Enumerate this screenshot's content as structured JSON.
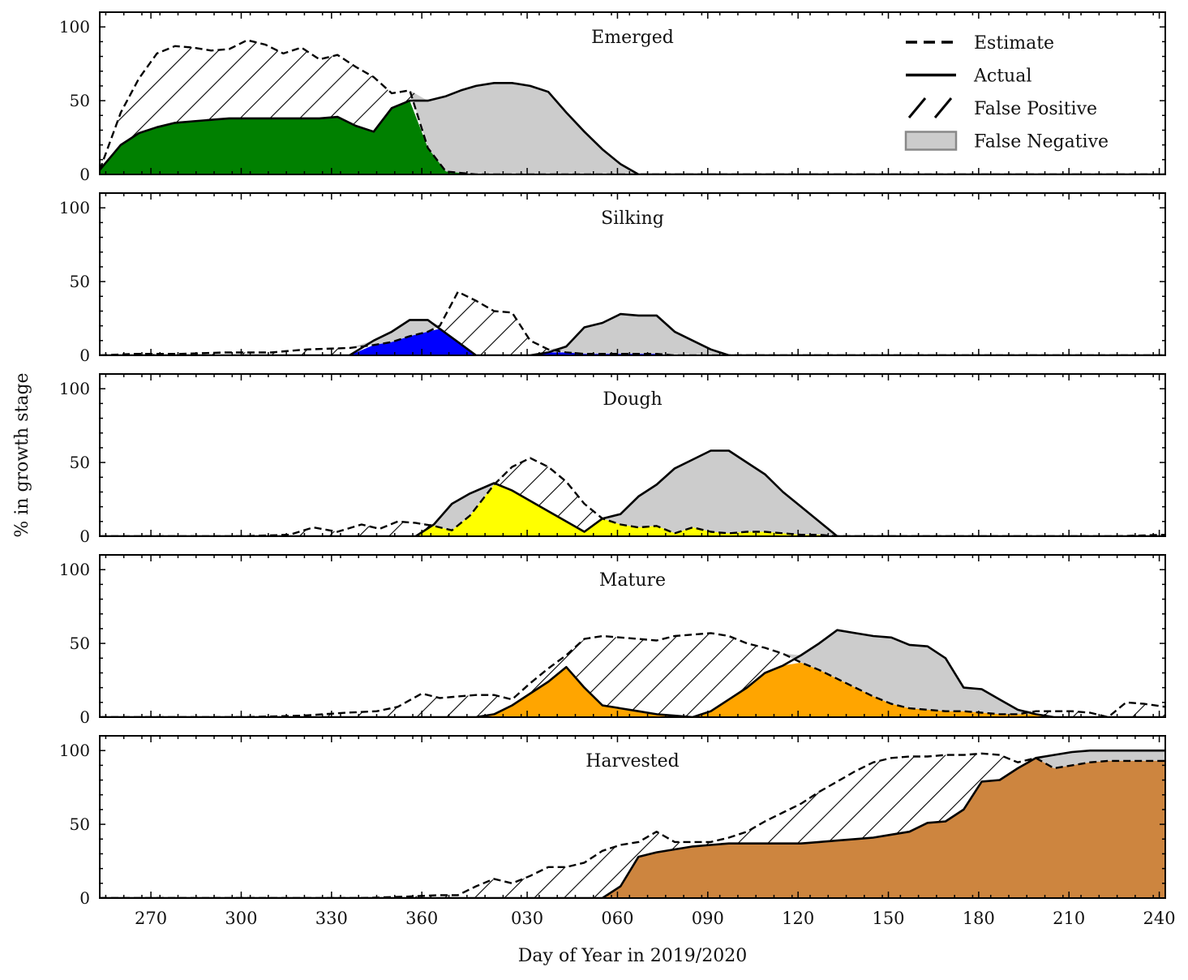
{
  "chart_data": {
    "type": "area",
    "ylabel": "% in growth stage",
    "xlabel": "Day of Year in 2019/2020",
    "x_axis": {
      "ticks": [
        {
          "x": 270,
          "label": "270"
        },
        {
          "x": 300,
          "label": "300"
        },
        {
          "x": 330,
          "label": "330"
        },
        {
          "x": 360,
          "label": "360"
        },
        {
          "x": 395,
          "label": "030"
        },
        {
          "x": 425,
          "label": "060"
        },
        {
          "x": 455,
          "label": "090"
        },
        {
          "x": 485,
          "label": "120"
        },
        {
          "x": 515,
          "label": "150"
        },
        {
          "x": 545,
          "label": "180"
        },
        {
          "x": 575,
          "label": "210"
        },
        {
          "x": 605,
          "label": "240"
        }
      ],
      "xlim": [
        253,
        607
      ],
      "note": "x is day count continuing past 365 into 2020 (365 + day-of-2020)"
    },
    "y_axis": {
      "ylim": [
        0,
        110
      ],
      "ticks": [
        0,
        50,
        100
      ]
    },
    "legend": {
      "position": "top-right",
      "entries": [
        {
          "label": "Estimate",
          "style": "dashed-line"
        },
        {
          "label": "Actual",
          "style": "solid-line"
        },
        {
          "label": "False Positive",
          "style": "hatch"
        },
        {
          "label": "False Negative",
          "style": "gray-fill"
        }
      ]
    },
    "colors": {
      "false_negative": "#cccccc",
      "line": "#000000"
    },
    "panels": [
      {
        "title": "Emerged",
        "color": "#008000",
        "x": [
          253,
          260,
          266,
          272,
          278,
          284,
          290,
          296,
          302,
          308,
          314,
          320,
          326,
          332,
          338,
          344,
          350,
          356,
          362,
          368,
          373,
          378,
          384,
          390,
          396,
          402,
          408,
          414,
          420,
          426,
          432,
          438,
          444,
          450,
          456,
          470,
          500,
          530,
          560,
          590,
          607
        ],
        "estimate": [
          3,
          42,
          65,
          82,
          87,
          86,
          84,
          85,
          91,
          88,
          82,
          86,
          78,
          81,
          73,
          66,
          55,
          57,
          18,
          2,
          1,
          0,
          0,
          0,
          0,
          0,
          0,
          0,
          0,
          0,
          0,
          0,
          0,
          0,
          0,
          0,
          0,
          0,
          0,
          0,
          0
        ],
        "actual": [
          3,
          20,
          28,
          32,
          35,
          36,
          37,
          38,
          38,
          38,
          38,
          38,
          38,
          39,
          33,
          29,
          45,
          50,
          50,
          53,
          57,
          60,
          62,
          62,
          60,
          56,
          42,
          29,
          17,
          7,
          0,
          0,
          0,
          0,
          0,
          0,
          0,
          0,
          0,
          0,
          0
        ]
      },
      {
        "title": "Silking",
        "color": "#0000ff",
        "x": [
          253,
          265,
          280,
          295,
          310,
          322,
          336,
          344,
          350,
          356,
          362,
          366,
          372,
          378,
          384,
          390,
          396,
          402,
          408,
          414,
          420,
          426,
          432,
          438,
          444,
          450,
          456,
          462,
          470,
          490,
          520,
          550,
          580,
          607
        ],
        "estimate": [
          0,
          1,
          1,
          2,
          2,
          4,
          5,
          7,
          9,
          13,
          16,
          20,
          43,
          37,
          30,
          29,
          10,
          4,
          2,
          1,
          1,
          1,
          1,
          1,
          0,
          0,
          0,
          0,
          0,
          0,
          0,
          0,
          0,
          0
        ],
        "actual": [
          0,
          0,
          0,
          0,
          0,
          0,
          0,
          10,
          16,
          24,
          24,
          18,
          9,
          0,
          0,
          0,
          0,
          2,
          6,
          19,
          22,
          28,
          27,
          27,
          16,
          10,
          4,
          0,
          0,
          0,
          0,
          0,
          0,
          0
        ]
      },
      {
        "title": "Dough",
        "color": "#ffff00",
        "x": [
          253,
          300,
          316,
          324,
          332,
          340,
          346,
          352,
          358,
          364,
          370,
          376,
          384,
          390,
          396,
          402,
          408,
          414,
          420,
          426,
          432,
          438,
          444,
          450,
          456,
          462,
          468,
          474,
          480,
          486,
          492,
          498,
          504,
          510,
          530,
          560,
          590,
          607
        ],
        "estimate": [
          0,
          0,
          1,
          6,
          3,
          8,
          5,
          10,
          9,
          7,
          4,
          14,
          35,
          47,
          53,
          47,
          37,
          22,
          12,
          8,
          6,
          7,
          2,
          6,
          3,
          2,
          3,
          3,
          2,
          1,
          1,
          0,
          0,
          0,
          0,
          0,
          0,
          1
        ],
        "actual": [
          0,
          0,
          0,
          0,
          0,
          0,
          0,
          0,
          0,
          8,
          22,
          29,
          36,
          31,
          24,
          17,
          10,
          3,
          12,
          15,
          27,
          35,
          46,
          52,
          58,
          58,
          50,
          42,
          30,
          20,
          10,
          0,
          0,
          0,
          0,
          0,
          0,
          0
        ]
      },
      {
        "title": "Mature",
        "color": "#ffa500",
        "x": [
          253,
          280,
          300,
          320,
          335,
          345,
          352,
          360,
          366,
          372,
          378,
          384,
          390,
          396,
          402,
          408,
          414,
          420,
          426,
          432,
          438,
          444,
          450,
          456,
          462,
          468,
          474,
          480,
          486,
          492,
          498,
          504,
          510,
          516,
          522,
          528,
          534,
          540,
          546,
          552,
          558,
          564,
          570,
          576,
          582,
          588,
          594,
          600,
          607
        ],
        "estimate": [
          0,
          0,
          0,
          1,
          3,
          4,
          7,
          16,
          13,
          14,
          15,
          15,
          12,
          23,
          33,
          42,
          53,
          55,
          54,
          53,
          52,
          55,
          56,
          57,
          55,
          50,
          47,
          43,
          37,
          32,
          26,
          20,
          14,
          9,
          6,
          5,
          4,
          4,
          3,
          2,
          2,
          4,
          4,
          4,
          3,
          0,
          10,
          9,
          7
        ],
        "actual": [
          0,
          0,
          0,
          0,
          0,
          0,
          0,
          0,
          0,
          0,
          0,
          2,
          8,
          16,
          24,
          34,
          20,
          8,
          6,
          4,
          2,
          1,
          0,
          4,
          12,
          20,
          30,
          35,
          42,
          50,
          59,
          57,
          55,
          54,
          49,
          48,
          40,
          20,
          19,
          12,
          5,
          2,
          0,
          0,
          0,
          0,
          0,
          0,
          0
        ]
      },
      {
        "title": "Harvested",
        "color": "#cd853f",
        "x": [
          253,
          300,
          340,
          355,
          366,
          372,
          378,
          384,
          390,
          396,
          402,
          408,
          414,
          420,
          426,
          432,
          438,
          444,
          450,
          456,
          462,
          468,
          474,
          480,
          486,
          492,
          498,
          504,
          510,
          516,
          522,
          528,
          534,
          540,
          546,
          552,
          558,
          564,
          570,
          576,
          582,
          588,
          594,
          600,
          607
        ],
        "estimate": [
          0,
          0,
          0,
          1,
          2,
          2,
          8,
          13,
          10,
          15,
          21,
          21,
          24,
          32,
          36,
          38,
          45,
          38,
          38,
          38,
          41,
          45,
          52,
          58,
          64,
          72,
          79,
          86,
          92,
          95,
          96,
          96,
          97,
          97,
          98,
          97,
          92,
          95,
          88,
          90,
          92,
          93,
          93,
          93,
          93
        ],
        "actual": [
          0,
          0,
          0,
          0,
          0,
          0,
          0,
          0,
          0,
          0,
          0,
          0,
          0,
          0,
          8,
          28,
          31,
          33,
          35,
          36,
          37,
          37,
          37,
          37,
          37,
          38,
          39,
          40,
          41,
          43,
          45,
          51,
          52,
          60,
          79,
          80,
          88,
          95,
          97,
          99,
          100,
          100,
          100,
          100,
          100
        ]
      }
    ]
  }
}
